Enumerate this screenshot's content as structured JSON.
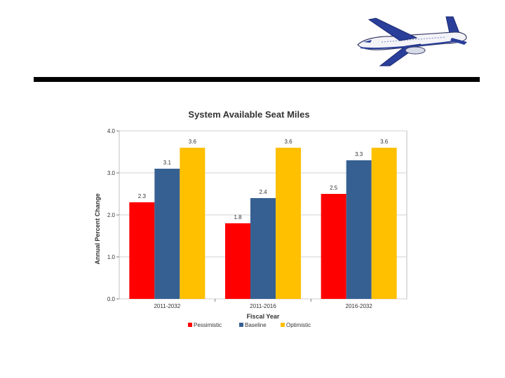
{
  "chart_data": {
    "type": "bar",
    "title": "System Available Seat Miles",
    "xlabel": "Fiscal Year",
    "ylabel": "Annual Percent Change",
    "ylim": [
      0,
      4
    ],
    "yticks": [
      "0.0",
      "1.0",
      "2.0",
      "3.0",
      "4.0"
    ],
    "categories": [
      "2011-2032",
      "2011-2016",
      "2016-2032"
    ],
    "series": [
      {
        "name": "Pessimistic",
        "color": "#ff0000",
        "values": [
          2.3,
          1.8,
          2.5
        ],
        "labels": [
          "2.3",
          "1.8",
          "2.5"
        ]
      },
      {
        "name": "Baseline",
        "color": "#376092",
        "values": [
          3.1,
          2.4,
          3.3
        ],
        "labels": [
          "3.1",
          "2.4",
          "3.3"
        ]
      },
      {
        "name": "Optimistic",
        "color": "#ffc000",
        "values": [
          3.6,
          3.6,
          3.6
        ],
        "labels": [
          "3.6",
          "3.6",
          "3.6"
        ]
      }
    ],
    "grid": true,
    "legend": "bottom"
  },
  "icons": {
    "decoration": "airplane-icon"
  }
}
